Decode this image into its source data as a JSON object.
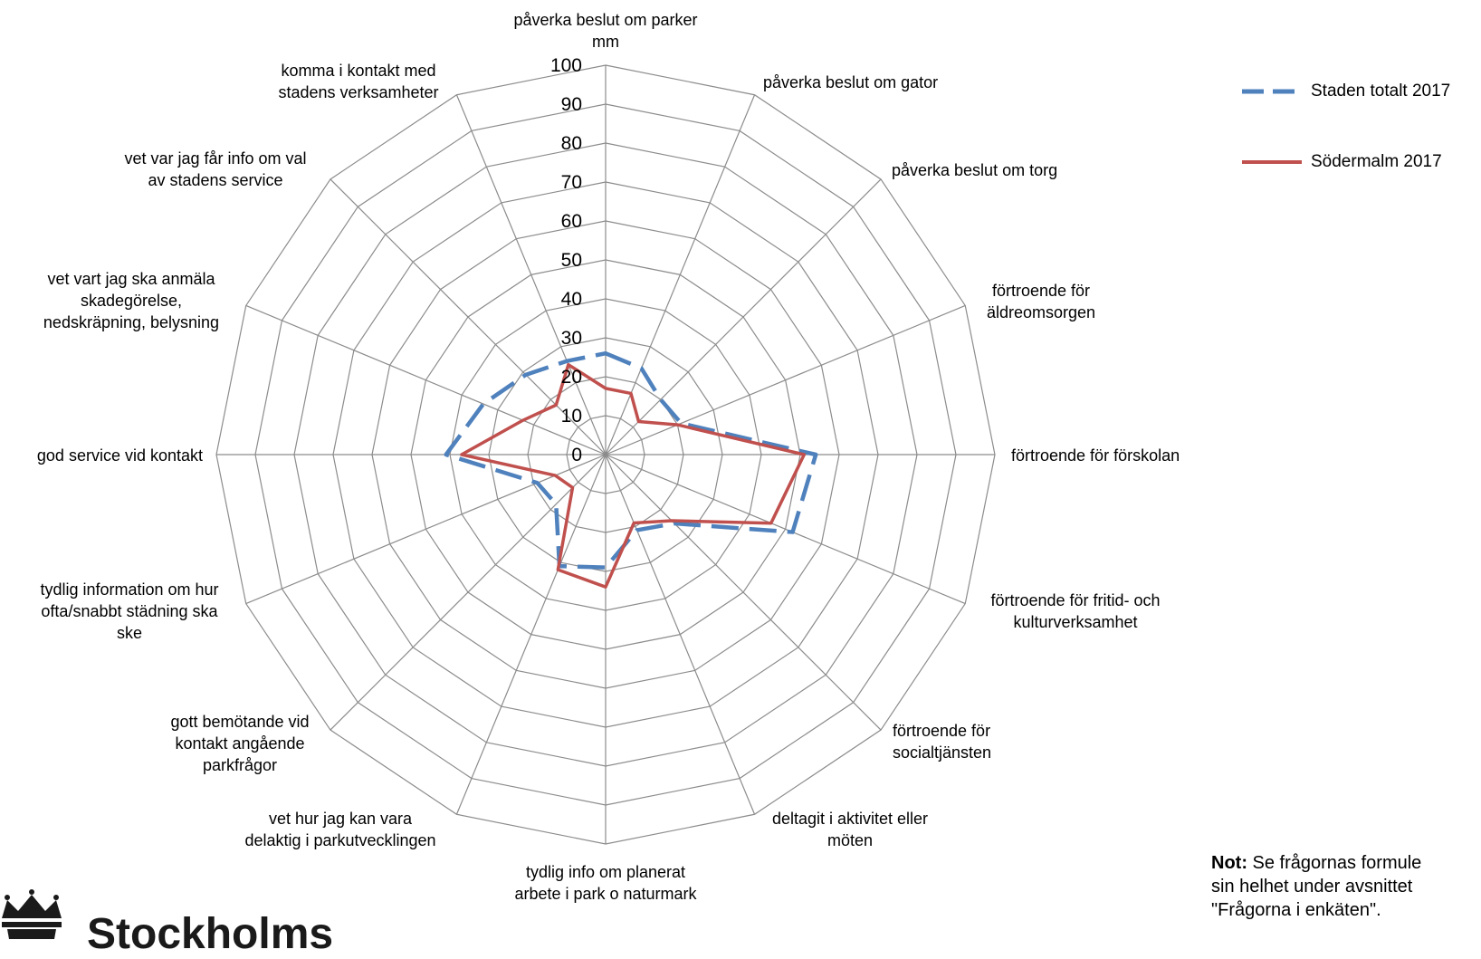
{
  "chart_data": {
    "type": "radar",
    "categories": [
      "påverka beslut om parker mm",
      "påverka beslut om gator",
      "påverka beslut om torg",
      "förtroende för äldreomsorgen",
      "förtroende för förskolan",
      "förtroende för fritid- och kulturverksamhet",
      "förtroende för socialtjänsten",
      "deltagit i aktivitet eller möten",
      "tydlig info om planerat arbete i park o naturmark",
      "vet hur jag kan vara delaktig i parkutvecklingen",
      "gott bemötande vid kontakt angående parkfrågor",
      "tydlig information om hur ofta/snabbt städning ska ske",
      "god service vid kontakt",
      "vet vart jag ska anmäla skadegörelse, nedskräpning, belysning",
      "vet var jag får info om val av stadens service",
      "komma i kontakt med stadens verksamheter"
    ],
    "series": [
      {
        "name": "Staden totalt 2017",
        "color": "#4f81bd",
        "dash": true,
        "values": [
          26,
          24,
          20,
          21,
          54,
          52,
          25,
          21,
          29,
          31,
          18,
          19,
          41,
          34,
          29,
          26
        ]
      },
      {
        "name": "Södermalm 2017",
        "color": "#c0504d",
        "dash": false,
        "values": [
          17,
          17,
          12,
          20,
          51,
          46,
          24,
          19,
          34,
          32,
          12,
          14,
          37,
          23,
          18,
          25
        ]
      }
    ],
    "rlim": [
      0,
      100
    ],
    "ticks": [
      0,
      10,
      20,
      30,
      40,
      50,
      60,
      70,
      80,
      90,
      100
    ],
    "grid": true,
    "legend_position": "top-right"
  },
  "note": {
    "bold": "Not:",
    "line1": " Se frågornas formule",
    "line2": "sin helhet under avsnittet",
    "line3": "\"Frågorna i enkäten\"."
  },
  "logo": {
    "text": "Stockholms"
  }
}
